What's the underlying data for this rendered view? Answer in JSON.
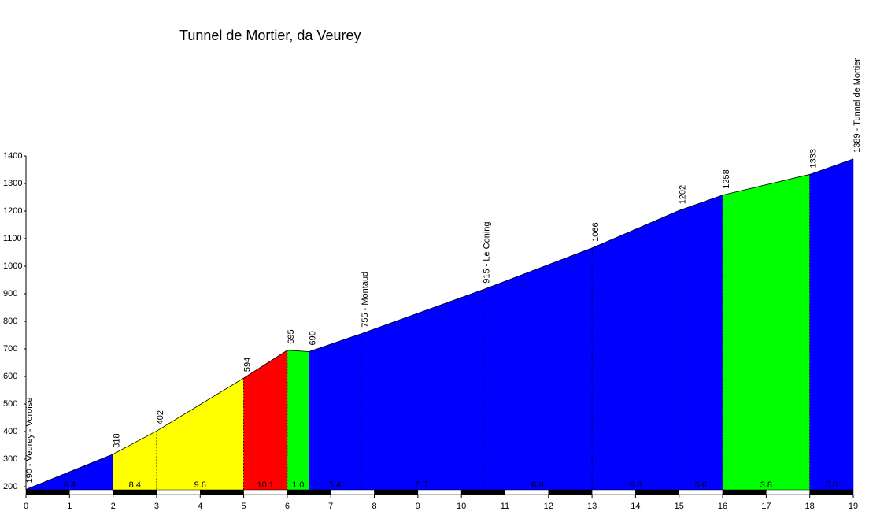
{
  "chart_data": {
    "type": "profile",
    "title": "Tunnel de Mortier, da Veurey",
    "x": [
      0,
      2,
      3,
      5,
      6,
      6.5,
      7.7,
      10.5,
      13,
      15,
      16,
      18,
      19
    ],
    "values": [
      190,
      318,
      402,
      594,
      695,
      690,
      755,
      915,
      1066,
      1202,
      1258,
      1333,
      1389
    ],
    "value_labels": [
      "190 - Veurey - Voroise",
      "318",
      "402",
      "594",
      "695",
      "690",
      "755 - Montaud",
      "915 - Le Coning",
      "1066",
      "1202",
      "1258",
      "1333",
      "1389 - Tunnel de Mortier"
    ],
    "grade_labels": [
      "6.4",
      "8.4",
      "9.6",
      "10.1",
      "1.0",
      "5.4",
      "5.7",
      "6.0",
      "6.8",
      "5.6",
      "3.8",
      "5.6"
    ],
    "segment_colors": [
      "#0000ff",
      "#ffff00",
      "#ffff00",
      "#ff0000",
      "#00ff00",
      "#0000ff",
      "#0000ff",
      "#0000ff",
      "#0000ff",
      "#0000ff",
      "#00ff00",
      "#0000ff"
    ],
    "xlim": [
      0,
      19
    ],
    "xticks": [
      0,
      1,
      2,
      3,
      4,
      5,
      6,
      7,
      8,
      9,
      10,
      11,
      12,
      13,
      14,
      15,
      16,
      17,
      18,
      19
    ],
    "ylim": [
      200,
      1400
    ],
    "yticks": [
      200,
      300,
      400,
      500,
      600,
      700,
      800,
      900,
      1000,
      1100,
      1200,
      1300,
      1400
    ]
  }
}
